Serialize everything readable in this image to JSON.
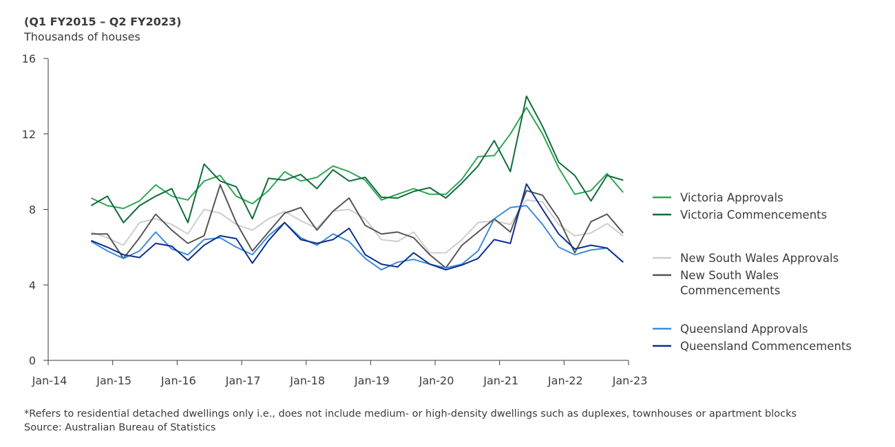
{
  "header": {
    "subtitle": "(Q1 FY2015 – Q2 FY2023)",
    "ylabel": "Thousands of houses"
  },
  "footnote": {
    "line1": "*Refers to residential detached dwellings only i.e., does not include medium- or high-density dwellings such as duplexes, townhouses or apartment blocks",
    "line2": "Source: Australian Bureau of Statistics"
  },
  "chart_data": {
    "type": "line",
    "title": "",
    "subtitle": "(Q1 FY2015 – Q2 FY2023)",
    "xlabel": "",
    "ylabel": "Thousands of houses",
    "ylim": [
      0,
      16
    ],
    "yticks": [
      0,
      4,
      8,
      12,
      16
    ],
    "xlim": [
      "2014-01",
      "2023-01"
    ],
    "xticks": [
      "Jan-14",
      "Jan-15",
      "Jan-16",
      "Jan-17",
      "Jan-18",
      "Jan-19",
      "Jan-20",
      "Jan-21",
      "Jan-22",
      "Jan-23"
    ],
    "grid": false,
    "legend_position": "right",
    "x": [
      "2014-09",
      "2014-12",
      "2015-03",
      "2015-06",
      "2015-09",
      "2015-12",
      "2016-03",
      "2016-06",
      "2016-09",
      "2016-12",
      "2017-03",
      "2017-06",
      "2017-09",
      "2017-12",
      "2018-03",
      "2018-06",
      "2018-09",
      "2018-12",
      "2019-03",
      "2019-06",
      "2019-09",
      "2019-12",
      "2020-03",
      "2020-06",
      "2020-09",
      "2020-12",
      "2021-03",
      "2021-06",
      "2021-09",
      "2021-12",
      "2022-03",
      "2022-06",
      "2022-09",
      "2022-12"
    ],
    "series": [
      {
        "name": "Victoria Approvals",
        "color": "#2ea553",
        "group": 0,
        "values": [
          8.6,
          8.2,
          8.05,
          8.45,
          9.3,
          8.7,
          8.5,
          9.5,
          9.8,
          8.7,
          8.3,
          9.0,
          10.0,
          9.5,
          9.7,
          10.3,
          10.0,
          9.55,
          8.5,
          8.8,
          9.1,
          8.8,
          8.8,
          9.6,
          10.8,
          10.85,
          12.0,
          13.4,
          12.0,
          10.2,
          8.8,
          9.0,
          9.9,
          8.9
        ]
      },
      {
        "name": "Victoria Commencements",
        "color": "#0f6b3a",
        "group": 0,
        "values": [
          8.2,
          8.7,
          7.3,
          8.2,
          8.7,
          9.1,
          7.3,
          10.4,
          9.5,
          9.2,
          7.5,
          9.65,
          9.55,
          9.85,
          9.1,
          10.1,
          9.5,
          9.7,
          8.65,
          8.6,
          8.95,
          9.15,
          8.6,
          9.4,
          10.3,
          11.65,
          10.0,
          14.0,
          12.4,
          10.5,
          9.8,
          8.45,
          9.8,
          9.55
        ]
      },
      {
        "name": "New South Wales Approvals",
        "color": "#cdcdcd",
        "group": 1,
        "values": [
          6.8,
          6.5,
          6.1,
          7.3,
          7.5,
          7.2,
          6.7,
          8.0,
          7.8,
          7.2,
          6.9,
          7.5,
          7.9,
          7.4,
          7.0,
          7.9,
          8.0,
          7.5,
          6.4,
          6.3,
          6.8,
          5.7,
          5.7,
          6.4,
          7.3,
          7.4,
          7.2,
          8.5,
          8.4,
          7.2,
          6.6,
          6.75,
          7.25,
          6.6
        ]
      },
      {
        "name": "New South Wales Commencements",
        "color": "#555555",
        "group": 1,
        "values": [
          6.7,
          6.7,
          5.4,
          6.5,
          7.75,
          6.9,
          6.2,
          6.6,
          9.3,
          7.3,
          5.8,
          6.8,
          7.8,
          8.1,
          6.9,
          7.9,
          8.6,
          7.15,
          6.7,
          6.8,
          6.5,
          5.6,
          4.9,
          6.1,
          6.8,
          7.5,
          6.8,
          9.0,
          8.75,
          7.5,
          5.7,
          7.35,
          7.75,
          6.75
        ]
      },
      {
        "name": "Queensland Approvals",
        "color": "#3d8ad6",
        "group": 2,
        "values": [
          6.3,
          5.8,
          5.4,
          5.8,
          6.8,
          5.9,
          5.6,
          6.4,
          6.5,
          6.0,
          5.6,
          6.6,
          7.3,
          6.5,
          6.1,
          6.7,
          6.3,
          5.4,
          4.8,
          5.2,
          5.35,
          5.1,
          4.9,
          5.1,
          5.8,
          7.5,
          8.1,
          8.2,
          7.2,
          6.0,
          5.6,
          5.85,
          5.95,
          5.2
        ]
      },
      {
        "name": "Queensland Commencements",
        "color": "#0b2f8a",
        "group": 2,
        "values": [
          6.35,
          6.0,
          5.6,
          5.45,
          6.2,
          6.05,
          5.3,
          6.1,
          6.6,
          6.45,
          5.15,
          6.35,
          7.3,
          6.4,
          6.2,
          6.4,
          7.0,
          5.6,
          5.1,
          4.95,
          5.7,
          5.1,
          4.8,
          5.05,
          5.4,
          6.4,
          6.2,
          9.35,
          8.0,
          6.7,
          5.9,
          6.1,
          5.95,
          5.2
        ]
      }
    ]
  }
}
